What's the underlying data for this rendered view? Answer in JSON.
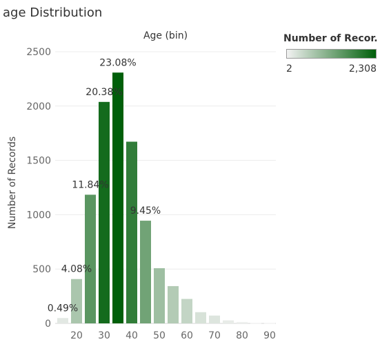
{
  "sheet": {
    "title": "age Distribution",
    "header": "Age (bin)"
  },
  "legend": {
    "title": "Number of Recor..",
    "min_label": "2",
    "max_label": "2,308",
    "color_low": "#f2f2f2",
    "color_high": "#005f0a"
  },
  "chart_data": {
    "type": "bar",
    "title": "age Distribution",
    "xlabel": "Age (bin)",
    "ylabel": "Number of Records",
    "ylim": [
      0,
      2500
    ],
    "yticks": [
      0,
      500,
      1000,
      1500,
      2000,
      2500
    ],
    "xticks": [
      20,
      30,
      40,
      50,
      60,
      70,
      80,
      90
    ],
    "grid": true,
    "bins": [
      15,
      20,
      25,
      30,
      35,
      40,
      45,
      50,
      55,
      60,
      65,
      70,
      75,
      80,
      85,
      90
    ],
    "values": [
      49,
      408,
      1184,
      2038,
      2308,
      1672,
      945,
      508,
      343,
      225,
      103,
      72,
      28,
      12,
      4,
      2
    ],
    "data_labels": [
      {
        "bin": 15,
        "text": "0.49%"
      },
      {
        "bin": 20,
        "text": "4.08%"
      },
      {
        "bin": 25,
        "text": "11.84%"
      },
      {
        "bin": 30,
        "text": "20.38%"
      },
      {
        "bin": 35,
        "text": "23.08%"
      },
      {
        "bin": 45,
        "text": "9.45%"
      }
    ]
  }
}
